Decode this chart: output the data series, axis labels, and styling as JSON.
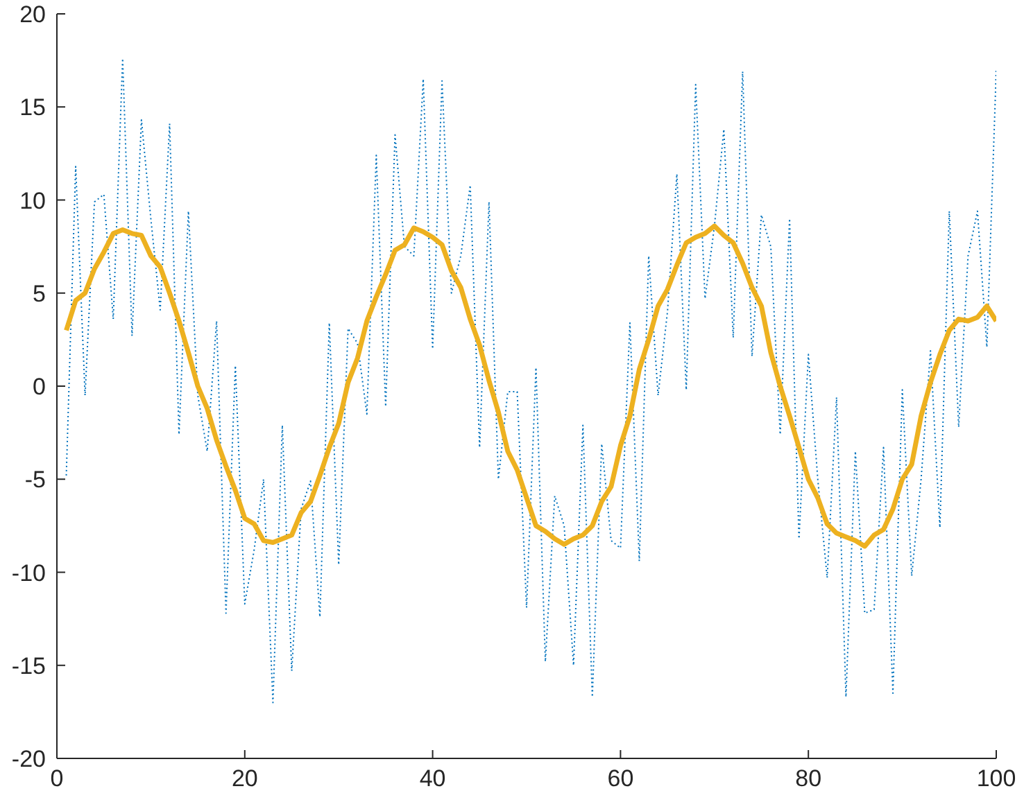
{
  "chart_data": {
    "type": "line",
    "x": [
      1,
      2,
      3,
      4,
      5,
      6,
      7,
      8,
      9,
      10,
      11,
      12,
      13,
      14,
      15,
      16,
      17,
      18,
      19,
      20,
      21,
      22,
      23,
      24,
      25,
      26,
      27,
      28,
      29,
      30,
      31,
      32,
      33,
      34,
      35,
      36,
      37,
      38,
      39,
      40,
      41,
      42,
      43,
      44,
      45,
      46,
      47,
      48,
      49,
      50,
      51,
      52,
      53,
      54,
      55,
      56,
      57,
      58,
      59,
      60,
      61,
      62,
      63,
      64,
      65,
      66,
      67,
      68,
      69,
      70,
      71,
      72,
      73,
      74,
      75,
      76,
      77,
      78,
      79,
      80,
      81,
      82,
      83,
      84,
      85,
      86,
      87,
      88,
      89,
      90,
      91,
      92,
      93,
      94,
      95,
      96,
      97,
      98,
      99,
      100
    ],
    "series": [
      {
        "color": "#0072bd",
        "line_style": "dotted",
        "values": [
          -4.8,
          11.8,
          -0.5,
          9.9,
          10.3,
          3.6,
          17.6,
          2.7,
          14.3,
          9,
          4.1,
          14.1,
          -2.6,
          9.4,
          -0.5,
          -3.5,
          3.5,
          -12.2,
          1.1,
          -11.7,
          -8.8,
          -5,
          -17,
          -2.1,
          -15.3,
          -6.6,
          -5.1,
          -12.4,
          3.4,
          -9.6,
          3.1,
          2.3,
          -1.5,
          12.4,
          -1.1,
          13.5,
          7.5,
          7,
          16.5,
          2,
          16.4,
          5,
          7,
          10.8,
          -3.3,
          9.9,
          -5,
          -0.3,
          -0.3,
          -11.9,
          1,
          -14.8,
          -5.9,
          -7.5,
          -15,
          -2.1,
          -16.7,
          -3.1,
          -8.3,
          -8.7,
          3.4,
          -9.4,
          7,
          -0.5,
          4,
          11.4,
          -0.2,
          16.2,
          4.7,
          8.6,
          13.8,
          2.6,
          16.9,
          1.6,
          9.2,
          7.5,
          -2.6,
          9,
          -8.2,
          1.7,
          -5,
          -10.3,
          -0.6,
          -16.7,
          -3.5,
          -12.2,
          -12,
          -3.3,
          -16.5,
          -0.2,
          -10.2,
          -5,
          1.9,
          -7.6,
          9.4,
          -2.2,
          7,
          9.4,
          2.1,
          17
        ]
      },
      {
        "color": "#edb120",
        "line_style": "solid",
        "values": [
          3.0,
          4.6,
          5.0,
          6.3,
          7.2,
          8.2,
          8.4,
          8.2,
          8.1,
          7.0,
          6.4,
          5.0,
          3.5,
          1.8,
          0.0,
          -1.2,
          -2.9,
          -4.3,
          -5.6,
          -7.1,
          -7.4,
          -8.3,
          -8.4,
          -8.2,
          -8.0,
          -6.8,
          -6.2,
          -4.8,
          -3.3,
          -2.0,
          0.2,
          1.5,
          3.5,
          4.8,
          6.0,
          7.3,
          7.6,
          8.5,
          8.3,
          8.0,
          7.6,
          6.2,
          5.3,
          3.6,
          2.2,
          0.3,
          -1.4,
          -3.5,
          -4.5,
          -6.0,
          -7.5,
          -7.8,
          -8.2,
          -8.5,
          -8.2,
          -8.0,
          -7.5,
          -6.2,
          -5.4,
          -3.2,
          -1.6,
          0.9,
          2.5,
          4.3,
          5.2,
          6.5,
          7.7,
          8.0,
          8.2,
          8.6,
          8.1,
          7.7,
          6.6,
          5.3,
          4.3,
          1.8,
          0.0,
          -1.6,
          -3.3,
          -5.0,
          -6.0,
          -7.4,
          -7.9,
          -8.1,
          -8.3,
          -8.6,
          -8.0,
          -7.7,
          -6.6,
          -5.0,
          -4.2,
          -1.6,
          0.2,
          1.7,
          3.0,
          3.6,
          3.5,
          3.7,
          4.3,
          3.5
        ]
      }
    ],
    "xlim": [
      0,
      100
    ],
    "xticks": [
      0,
      20,
      40,
      60,
      80,
      100
    ],
    "ylim": [
      -20,
      20
    ],
    "yticks": [
      -20,
      -15,
      -10,
      -5,
      0,
      5,
      10,
      15,
      20
    ],
    "grid": false,
    "legend": false
  }
}
